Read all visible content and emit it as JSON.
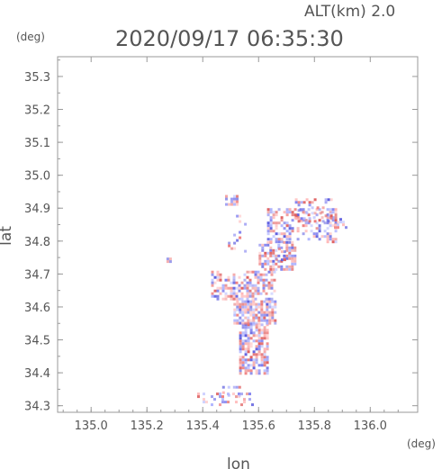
{
  "chart_data": {
    "type": "scatter",
    "title": "2020/09/17 06:35:30",
    "annotation": "ALT(km) 2.0",
    "xlabel": "lon",
    "ylabel": "lat",
    "xunit": "(deg)",
    "yunit": "(deg)",
    "xlim": [
      134.88,
      136.17
    ],
    "ylim": [
      34.28,
      35.36
    ],
    "xticks": [
      135.0,
      135.2,
      135.4,
      135.6,
      135.8,
      136.0
    ],
    "xtick_labels": [
      "135.0",
      "135.2",
      "135.4",
      "135.6",
      "135.8",
      "136.0"
    ],
    "yticks": [
      34.3,
      34.4,
      34.5,
      34.6,
      34.7,
      34.8,
      34.9,
      35.0,
      35.1,
      35.2,
      35.3
    ],
    "ytick_labels": [
      "34.3",
      "34.4",
      "34.5",
      "34.6",
      "34.7",
      "34.8",
      "34.9",
      "35.0",
      "35.1",
      "35.2",
      "35.3"
    ],
    "grid": false,
    "colors": {
      "approaching": "#7777ee",
      "receding": "#ee7777",
      "axis": "#999999",
      "text": "#555555"
    },
    "echo_regions": [
      {
        "lon": [
          135.38,
          135.58
        ],
        "lat": [
          34.3,
          34.34
        ],
        "density": 0.35
      },
      {
        "lon": [
          135.46,
          135.53
        ],
        "lat": [
          34.33,
          34.36
        ],
        "density": 0.3
      },
      {
        "lon": [
          135.53,
          135.63
        ],
        "lat": [
          34.4,
          34.55
        ],
        "density": 0.7
      },
      {
        "lon": [
          135.51,
          135.66
        ],
        "lat": [
          34.55,
          34.62
        ],
        "density": 0.75
      },
      {
        "lon": [
          135.43,
          135.66
        ],
        "lat": [
          34.62,
          34.71
        ],
        "density": 0.55
      },
      {
        "lon": [
          135.6,
          135.73
        ],
        "lat": [
          34.71,
          34.8
        ],
        "density": 0.55
      },
      {
        "lon": [
          135.63,
          135.88
        ],
        "lat": [
          34.8,
          34.9
        ],
        "density": 0.45
      },
      {
        "lon": [
          135.73,
          135.86
        ],
        "lat": [
          34.86,
          34.93
        ],
        "density": 0.35
      },
      {
        "lon": [
          135.48,
          135.52
        ],
        "lat": [
          34.91,
          34.94
        ],
        "density": 0.6
      },
      {
        "lon": [
          135.49,
          135.55
        ],
        "lat": [
          34.77,
          34.88
        ],
        "density": 0.15
      },
      {
        "lon": [
          135.66,
          135.69
        ],
        "lat": [
          34.74,
          34.78
        ],
        "density": 0.3
      },
      {
        "lon": [
          135.87,
          135.91
        ],
        "lat": [
          34.84,
          34.87
        ],
        "density": 0.4
      },
      {
        "lon": [
          135.27,
          135.28
        ],
        "lat": [
          34.74,
          34.75
        ],
        "density": 0.9
      }
    ]
  }
}
